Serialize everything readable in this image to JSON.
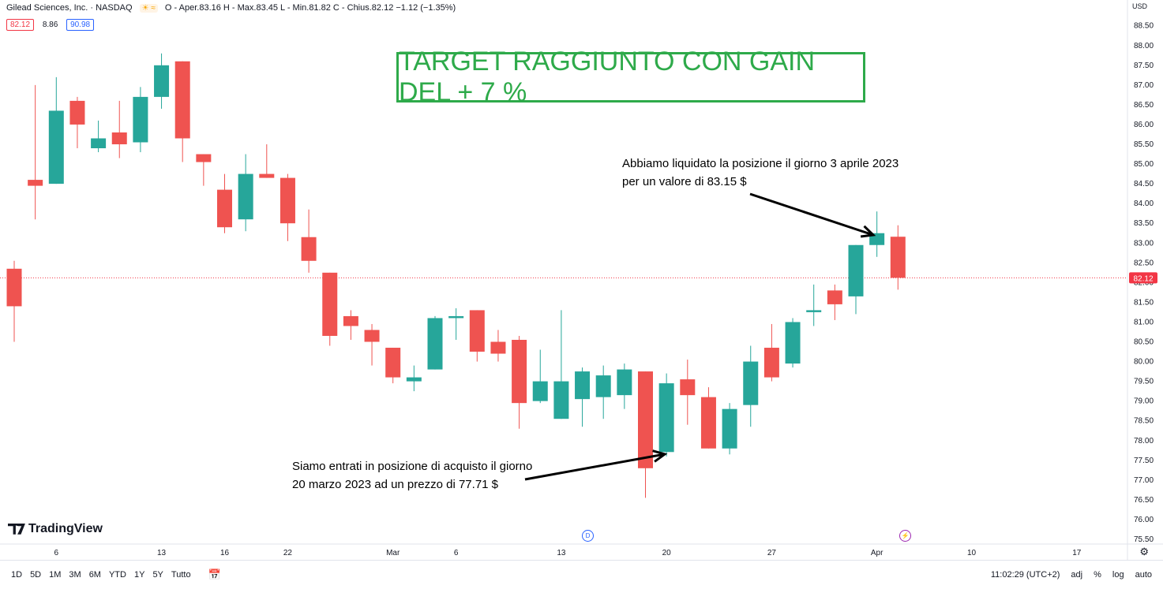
{
  "header": {
    "symbol": "Gilead Sciences, Inc. · NASDAQ",
    "ohlc": "O - Aper.83.16 H - Max.83.45 L - Min.81.82 C - Chius.82.12 −1.12 (−1.35%)",
    "icons": "☀ ≈"
  },
  "badges": {
    "last": "82.12",
    "mid": "8.86",
    "ask": "90.98"
  },
  "currency": "USD",
  "target_banner": "TARGET RAGGIUNTO CON GAIN DEL + 7 %",
  "note_exit": "Abbiamo liquidato la posizione il giorno 3 aprile 2023 per un valore di 83.15 $",
  "note_entry": "Siamo entrati in posizione di acquisto il giorno 20 marzo 2023 ad un prezzo di 77.71 $",
  "logo": "TradingView",
  "events": {
    "dividend": "D",
    "split": "⚡"
  },
  "toolbar": {
    "timeframes": [
      "1D",
      "5D",
      "1M",
      "3M",
      "6M",
      "YTD",
      "1Y",
      "5Y",
      "Tutto"
    ],
    "calendar_icon": "calendar-icon",
    "clock": "11:02:29 (UTC+2)",
    "adj": "adj",
    "percent": "%",
    "log": "log",
    "auto": "auto",
    "settings_icon": "gear-icon"
  },
  "colors": {
    "up": "#26a69a",
    "down": "#ef5350",
    "banner": "#2eaa4a",
    "last_price": "#f23645"
  },
  "chart_data": {
    "type": "candlestick",
    "title": "Gilead Sciences, Inc. · NASDAQ",
    "ylim": [
      75.4,
      88.8
    ],
    "y_ticks": [
      75.5,
      76.0,
      76.5,
      77.0,
      77.5,
      78.0,
      78.5,
      79.0,
      79.5,
      80.0,
      80.5,
      81.0,
      81.5,
      82.0,
      82.5,
      83.0,
      83.5,
      84.0,
      84.5,
      85.0,
      85.5,
      86.0,
      86.5,
      87.0,
      87.5,
      88.0,
      88.5
    ],
    "x_ticks": [
      {
        "label": "6",
        "idx": 2
      },
      {
        "label": "13",
        "idx": 7
      },
      {
        "label": "16",
        "idx": 10
      },
      {
        "label": "22",
        "idx": 13
      },
      {
        "label": "Mar",
        "idx": 18
      },
      {
        "label": "6",
        "idx": 21
      },
      {
        "label": "13",
        "idx": 26
      },
      {
        "label": "20",
        "idx": 31
      },
      {
        "label": "27",
        "idx": 36
      },
      {
        "label": "Apr",
        "idx": 41
      },
      {
        "label": "10",
        "idx": 45.5
      },
      {
        "label": "17",
        "idx": 50.5
      }
    ],
    "last_price": 82.12,
    "candles": [
      {
        "o": 82.35,
        "h": 82.55,
        "l": 80.5,
        "c": 81.4
      },
      {
        "o": 84.6,
        "h": 87.0,
        "l": 83.6,
        "c": 84.45
      },
      {
        "o": 84.5,
        "h": 87.2,
        "l": 84.5,
        "c": 86.35
      },
      {
        "o": 86.6,
        "h": 86.7,
        "l": 85.4,
        "c": 86.0
      },
      {
        "o": 85.4,
        "h": 86.1,
        "l": 85.3,
        "c": 85.65
      },
      {
        "o": 85.8,
        "h": 86.6,
        "l": 85.15,
        "c": 85.5
      },
      {
        "o": 85.55,
        "h": 86.95,
        "l": 85.3,
        "c": 86.7
      },
      {
        "o": 86.7,
        "h": 87.8,
        "l": 86.4,
        "c": 87.5
      },
      {
        "o": 87.6,
        "h": 87.6,
        "l": 85.05,
        "c": 85.65
      },
      {
        "o": 85.25,
        "h": 85.25,
        "l": 84.45,
        "c": 85.05
      },
      {
        "o": 84.35,
        "h": 84.75,
        "l": 83.25,
        "c": 83.4
      },
      {
        "o": 83.6,
        "h": 85.25,
        "l": 83.3,
        "c": 84.75
      },
      {
        "o": 84.75,
        "h": 85.5,
        "l": 84.65,
        "c": 84.65
      },
      {
        "o": 84.65,
        "h": 84.75,
        "l": 83.05,
        "c": 83.5
      },
      {
        "o": 83.15,
        "h": 83.85,
        "l": 82.25,
        "c": 82.55
      },
      {
        "o": 82.25,
        "h": 82.25,
        "l": 80.4,
        "c": 80.65
      },
      {
        "o": 81.15,
        "h": 81.3,
        "l": 80.55,
        "c": 80.9
      },
      {
        "o": 80.8,
        "h": 80.95,
        "l": 79.9,
        "c": 80.5
      },
      {
        "o": 80.35,
        "h": 80.35,
        "l": 79.45,
        "c": 79.6
      },
      {
        "o": 79.5,
        "h": 79.9,
        "l": 79.25,
        "c": 79.6
      },
      {
        "o": 79.8,
        "h": 81.15,
        "l": 79.8,
        "c": 81.1
      },
      {
        "o": 81.1,
        "h": 81.35,
        "l": 80.55,
        "c": 81.15
      },
      {
        "o": 81.3,
        "h": 81.3,
        "l": 80.0,
        "c": 80.25
      },
      {
        "o": 80.5,
        "h": 80.8,
        "l": 80.0,
        "c": 80.2
      },
      {
        "o": 80.55,
        "h": 80.65,
        "l": 78.3,
        "c": 78.95
      },
      {
        "o": 79.0,
        "h": 80.3,
        "l": 78.95,
        "c": 79.5
      },
      {
        "o": 78.55,
        "h": 81.3,
        "l": 78.55,
        "c": 79.5
      },
      {
        "o": 79.05,
        "h": 79.85,
        "l": 78.35,
        "c": 79.75
      },
      {
        "o": 79.1,
        "h": 79.9,
        "l": 78.55,
        "c": 79.65
      },
      {
        "o": 79.15,
        "h": 79.95,
        "l": 78.8,
        "c": 79.8
      },
      {
        "o": 79.75,
        "h": 79.75,
        "l": 76.55,
        "c": 77.3
      },
      {
        "o": 77.71,
        "h": 79.7,
        "l": 77.6,
        "c": 79.45
      },
      {
        "o": 79.55,
        "h": 80.05,
        "l": 78.4,
        "c": 79.15
      },
      {
        "o": 79.1,
        "h": 79.35,
        "l": 77.8,
        "c": 77.8
      },
      {
        "o": 77.8,
        "h": 78.95,
        "l": 77.65,
        "c": 78.8
      },
      {
        "o": 78.9,
        "h": 80.4,
        "l": 78.35,
        "c": 80.0
      },
      {
        "o": 80.35,
        "h": 80.95,
        "l": 79.5,
        "c": 79.6
      },
      {
        "o": 79.95,
        "h": 81.1,
        "l": 79.85,
        "c": 81.0
      },
      {
        "o": 81.25,
        "h": 81.95,
        "l": 80.9,
        "c": 81.3
      },
      {
        "o": 81.8,
        "h": 81.95,
        "l": 81.05,
        "c": 81.45
      },
      {
        "o": 81.65,
        "h": 82.95,
        "l": 81.2,
        "c": 82.95
      },
      {
        "o": 82.95,
        "h": 83.8,
        "l": 82.65,
        "c": 83.25
      },
      {
        "o": 83.16,
        "h": 83.45,
        "l": 81.82,
        "c": 82.12
      }
    ]
  }
}
